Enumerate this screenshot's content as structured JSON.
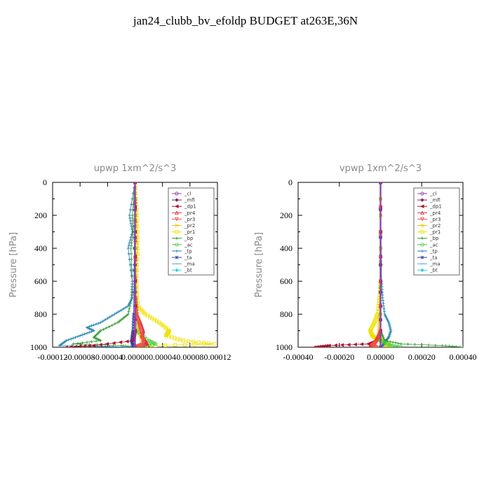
{
  "page_title": "jan24_clubb_bv_efoldp  BUDGET at263E,36N",
  "legend_entries": [
    {
      "name": "_cl",
      "color": "#8e44ad",
      "marker": "circle"
    },
    {
      "name": "_mfl",
      "color": "#7a1f5c",
      "marker": "diamond"
    },
    {
      "name": "_dp1",
      "color": "#b0102d",
      "marker": "tri-left"
    },
    {
      "name": "_pr4",
      "color": "#e0303f",
      "marker": "tri-up"
    },
    {
      "name": "_pr3",
      "color": "#f05545",
      "marker": "tri-down"
    },
    {
      "name": "_pr2",
      "color": "#f2c500",
      "marker": "x"
    },
    {
      "name": "_pr1",
      "color": "#f0e000",
      "marker": "square"
    },
    {
      "name": "_bp",
      "color": "#2a9a2a",
      "marker": "plus"
    },
    {
      "name": "_ac",
      "color": "#40d040",
      "marker": "circle"
    },
    {
      "name": "_tp",
      "color": "#2080b0",
      "marker": "plus"
    },
    {
      "name": "_ta",
      "color": "#3040a0",
      "marker": "asterisk"
    },
    {
      "name": "_ma",
      "color": "#4aa0d0",
      "marker": "dash"
    },
    {
      "name": "_bt",
      "color": "#30d0e0",
      "marker": "diamond"
    }
  ],
  "chart_data": [
    {
      "type": "line",
      "title": "upwp   1xm^2/s^3",
      "ylabel": "Pressure [hPa]",
      "xlabel": "",
      "xlim": [
        -0.00012,
        0.00012
      ],
      "ylim": [
        1000,
        0
      ],
      "x_tick_labels": [
        "-0.00012",
        "-0.00008",
        "-0.00004",
        "0.00000",
        "0.00004",
        "0.00008",
        "0.00012"
      ],
      "x_ticks": [
        -0.00012,
        -8e-05,
        -4e-05,
        0,
        4e-05,
        8e-05,
        0.00012
      ],
      "y_ticks": [
        0,
        200,
        400,
        600,
        800,
        1000
      ],
      "y_tick_labels": [
        "0",
        "200",
        "400",
        "600",
        "800",
        "1000"
      ],
      "series": [
        {
          "name": "_pr1",
          "p": [
            0,
            200,
            400,
            600,
            750,
            800,
            850,
            900,
            930,
            960,
            980,
            990,
            1000
          ],
          "x": [
            0,
            3e-06,
            4e-06,
            2e-06,
            4e-06,
            1.5e-05,
            3.5e-05,
            5e-05,
            4.5e-05,
            7e-05,
            0.000115,
            3e-05,
            0
          ]
        },
        {
          "name": "_pr2",
          "p": [
            0,
            200,
            400,
            600,
            800,
            900,
            960,
            990,
            1000
          ],
          "x": [
            0,
            2e-06,
            3e-06,
            2e-06,
            3e-06,
            4e-06,
            1e-05,
            2e-05,
            0
          ]
        },
        {
          "name": "_bp",
          "p": [
            0,
            200,
            300,
            400,
            600,
            700,
            800,
            850,
            900,
            940,
            960,
            980,
            990,
            1000
          ],
          "x": [
            0,
            -4e-06,
            -3e-06,
            -6e-06,
            -4e-06,
            -5e-06,
            -1e-05,
            -2.5e-05,
            -5e-05,
            -6e-05,
            -5e-05,
            -9e-05,
            -2e-05,
            0
          ]
        },
        {
          "name": "_ac",
          "p": [
            0,
            600,
            900,
            960,
            980,
            1000
          ],
          "x": [
            0,
            0,
            2e-06,
            2e-05,
            3e-05,
            0
          ]
        },
        {
          "name": "_tp",
          "p": [
            0,
            200,
            300,
            400,
            600,
            700,
            750,
            800,
            850,
            880,
            900,
            930,
            960,
            990,
            1000
          ],
          "x": [
            0,
            -8e-06,
            -4e-06,
            -1e-05,
            -4e-06,
            -4e-06,
            -1e-05,
            -3e-05,
            -5e-05,
            -7e-05,
            -6e-05,
            -8e-05,
            -0.0001,
            -0.00011,
            0
          ]
        },
        {
          "name": "_ta",
          "p": [
            0,
            800,
            900,
            960,
            990,
            1000
          ],
          "x": [
            0,
            -2e-06,
            -3e-06,
            -5e-06,
            -3e-06,
            0
          ]
        },
        {
          "name": "_pr4",
          "p": [
            0,
            700,
            800,
            850,
            900,
            930,
            960,
            980,
            1000
          ],
          "x": [
            0,
            1e-06,
            3e-06,
            8e-06,
            1.2e-05,
            1e-05,
            1.5e-05,
            1.8e-05,
            0
          ]
        },
        {
          "name": "_pr3",
          "p": [
            0,
            700,
            800,
            850,
            900,
            950,
            980,
            1000
          ],
          "x": [
            0,
            0,
            2e-06,
            5e-06,
            8e-06,
            1.2e-05,
            1.2e-05,
            0
          ]
        },
        {
          "name": "_dp1",
          "p": [
            0,
            900,
            960,
            990,
            1000
          ],
          "x": [
            0,
            0,
            -2e-06,
            -6e-05,
            -0.0001
          ]
        },
        {
          "name": "_mfl",
          "p": [
            0,
            1000
          ],
          "x": [
            0,
            0
          ]
        },
        {
          "name": "_cl",
          "p": [
            0,
            1000
          ],
          "x": [
            0,
            0
          ]
        }
      ]
    },
    {
      "type": "line",
      "title": "vpwp   1xm^2/s^3",
      "ylabel": "Pressure [hPa]",
      "xlabel": "",
      "xlim": [
        -0.0004,
        0.0004
      ],
      "ylim": [
        1000,
        0
      ],
      "x_tick_labels": [
        "-0.00040",
        "-0.00020",
        "0.00000",
        "0.00020",
        "0.00040"
      ],
      "x_ticks": [
        -0.0004,
        -0.0002,
        0,
        0.0002,
        0.0004
      ],
      "y_ticks": [
        0,
        200,
        400,
        600,
        800,
        1000
      ],
      "y_tick_labels": [
        "0",
        "200",
        "400",
        "600",
        "800",
        "1000"
      ],
      "series": [
        {
          "name": "_pr1",
          "p": [
            0,
            600,
            700,
            800,
            850,
            900,
            930,
            950,
            970,
            990,
            1000
          ],
          "x": [
            0,
            0,
            -5e-06,
            -1.5e-05,
            -3e-05,
            -5e-05,
            -4e-05,
            -2e-05,
            2e-05,
            5e-05,
            0
          ]
        },
        {
          "name": "_pr2",
          "p": [
            0,
            600,
            800,
            900,
            960,
            990,
            1000
          ],
          "x": [
            0,
            0,
            -5e-06,
            -1e-05,
            1e-05,
            2e-05,
            0
          ]
        },
        {
          "name": "_tp",
          "p": [
            0,
            600,
            700,
            800,
            850,
            900,
            940,
            970,
            990,
            1000
          ],
          "x": [
            0,
            5e-06,
            1e-05,
            2e-05,
            4e-05,
            5e-05,
            4e-05,
            2e-05,
            1e-05,
            0
          ]
        },
        {
          "name": "_bp",
          "p": [
            0,
            900,
            960,
            980,
            990,
            1000
          ],
          "x": [
            0,
            0,
            2e-05,
            0.0001,
            0.0003,
            0.0004
          ]
        },
        {
          "name": "_ac",
          "p": [
            0,
            960,
            990,
            1000
          ],
          "x": [
            0,
            0,
            5e-05,
            0.0001
          ]
        },
        {
          "name": "_dp1",
          "p": [
            0,
            900,
            960,
            980,
            990,
            1000
          ],
          "x": [
            0,
            0,
            -2e-05,
            -6e-05,
            -0.00025,
            -0.00032
          ]
        },
        {
          "name": "_pr4",
          "p": [
            0,
            900,
            970,
            990,
            1000
          ],
          "x": [
            0,
            0,
            -3e-05,
            -5e-05,
            -3e-05
          ]
        },
        {
          "name": "_pr3",
          "p": [
            0,
            900,
            970,
            990,
            1000
          ],
          "x": [
            0,
            0,
            -2e-05,
            -4e-05,
            -2e-05
          ]
        },
        {
          "name": "_ta",
          "p": [
            0,
            1000
          ],
          "x": [
            0,
            0
          ]
        },
        {
          "name": "_mfl",
          "p": [
            0,
            1000
          ],
          "x": [
            0,
            0
          ]
        },
        {
          "name": "_cl",
          "p": [
            0,
            1000
          ],
          "x": [
            0,
            0
          ]
        }
      ]
    }
  ]
}
